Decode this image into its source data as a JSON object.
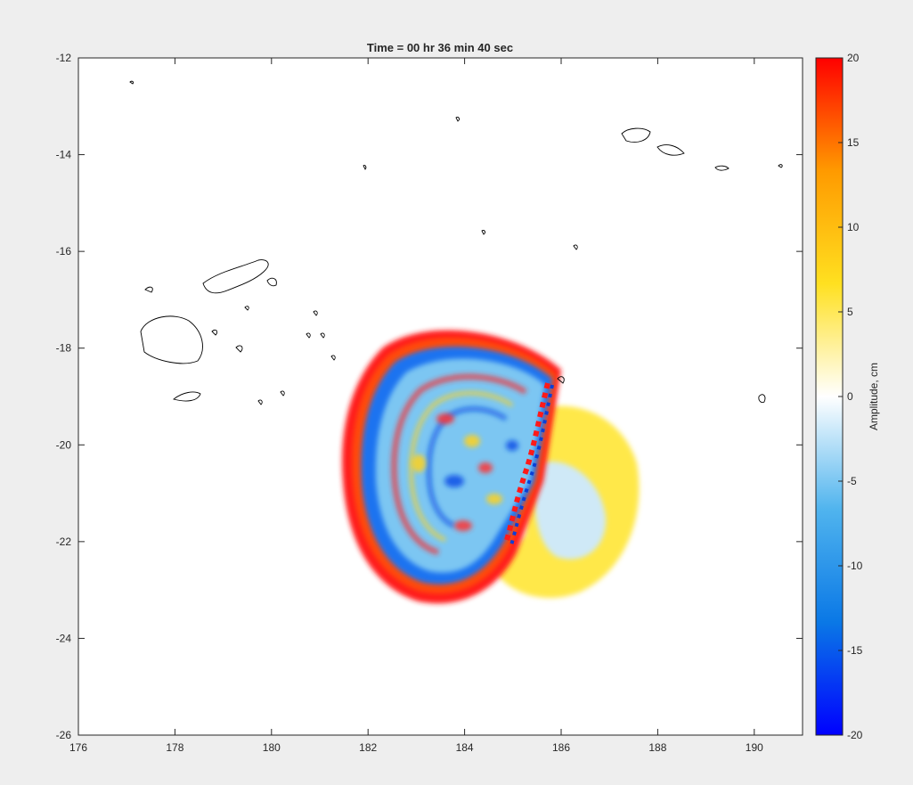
{
  "chart_data": {
    "type": "heatmap",
    "title": "Time = 00 hr 36 min 40 sec",
    "xlabel": "",
    "ylabel": "",
    "xlim": [
      176,
      191
    ],
    "ylim": [
      -26,
      -12
    ],
    "xticks": [
      176,
      178,
      180,
      182,
      184,
      186,
      188,
      190
    ],
    "yticks": [
      -12,
      -14,
      -16,
      -18,
      -20,
      -22,
      -24,
      -26
    ],
    "grid": false,
    "colorbar": {
      "label": "Amplitude, cm",
      "range": [
        -20,
        20
      ],
      "ticks": [
        20,
        15,
        10,
        5,
        0,
        -5,
        -10,
        -15,
        -20
      ],
      "colormap": "blue-white-red",
      "colors": [
        "#0000ff",
        "#0a78e6",
        "#50b4ee",
        "#ffffff",
        "#ffe020",
        "#ff9a00",
        "#ff0000"
      ]
    },
    "coastline_color": "#000000",
    "wave_field": {
      "source_center_lon": 185.2,
      "source_center_lat": -20.6,
      "west_front_lon": 181.6,
      "south_front_lat": -23.2,
      "north_front_lat": -17.6,
      "east_front_lon": 187.5
    }
  }
}
